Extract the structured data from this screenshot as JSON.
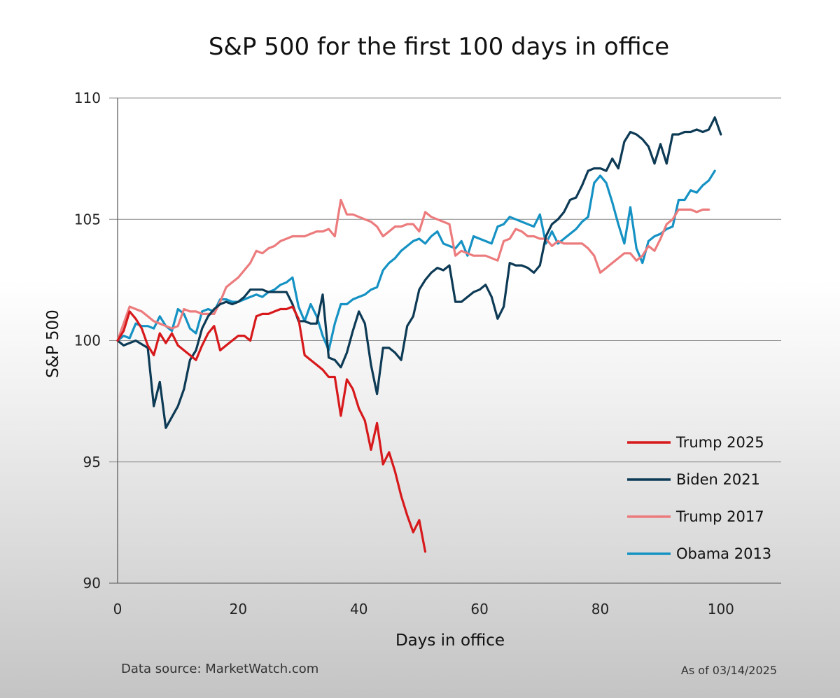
{
  "chart_data": {
    "type": "line",
    "title": "S&P 500 for the first 100 days in office",
    "xlabel": "Days in office",
    "ylabel": "S&P 500",
    "xlim": [
      0,
      110
    ],
    "ylim": [
      90,
      110
    ],
    "xticks": [
      "0",
      "20",
      "40",
      "60",
      "80",
      "100"
    ],
    "yticks": [
      "90",
      "95",
      "100",
      "105",
      "110"
    ],
    "grid": "horizontal",
    "legend_position": "bottom-right",
    "source": "Data source: MarketWatch.com",
    "as_of": "As of 03/14/2025",
    "series": [
      {
        "name": "Trump 2025",
        "color": "#d7191c",
        "x": [
          0,
          1,
          2,
          3,
          4,
          5,
          6,
          7,
          8,
          9,
          10,
          11,
          12,
          13,
          14,
          15,
          16,
          17,
          18,
          19,
          20,
          21,
          22,
          23,
          24,
          25,
          26,
          27,
          28,
          29,
          30,
          31,
          32,
          33,
          34,
          35,
          36,
          37,
          38,
          39,
          40,
          41,
          42,
          43,
          44,
          45,
          46,
          47,
          48,
          49,
          50,
          51
        ],
        "y": [
          100.0,
          100.4,
          101.2,
          100.9,
          100.5,
          99.8,
          99.4,
          100.3,
          99.9,
          100.3,
          99.8,
          99.6,
          99.4,
          99.2,
          99.8,
          100.3,
          100.6,
          99.6,
          99.8,
          100.0,
          100.2,
          100.2,
          100.0,
          101.0,
          101.1,
          101.1,
          101.2,
          101.3,
          101.3,
          101.4,
          100.9,
          99.4,
          99.2,
          99.0,
          98.8,
          98.5,
          98.5,
          96.9,
          98.4,
          98.0,
          97.2,
          96.7,
          95.5,
          96.6,
          94.9,
          95.4,
          94.6,
          93.6,
          92.8,
          92.1,
          92.6,
          91.3
        ]
      },
      {
        "name": "Biden 2021",
        "color": "#0d3a55",
        "x": [
          0,
          1,
          3,
          5,
          6,
          7,
          8,
          10,
          11,
          12,
          13,
          14,
          15,
          16,
          17,
          18,
          19,
          20,
          21,
          22,
          23,
          24,
          25,
          26,
          27,
          28,
          29,
          30,
          31,
          32,
          33,
          34,
          35,
          36,
          37,
          38,
          39,
          40,
          41,
          42,
          43,
          44,
          45,
          46,
          47,
          48,
          49,
          50,
          51,
          52,
          53,
          54,
          55,
          56,
          57,
          58,
          59,
          60,
          61,
          62,
          63,
          64,
          65,
          66,
          67,
          68,
          69,
          70,
          71,
          72,
          73,
          74,
          75,
          76,
          77,
          78,
          79,
          80,
          81,
          82,
          83,
          84,
          85,
          86,
          87,
          88,
          89,
          90,
          91,
          92,
          93,
          94,
          95,
          96,
          97,
          98,
          99,
          100
        ],
        "y": [
          100.0,
          99.8,
          100.0,
          99.7,
          97.3,
          98.3,
          96.4,
          97.3,
          98.0,
          99.2,
          99.6,
          100.5,
          101.0,
          101.3,
          101.5,
          101.6,
          101.5,
          101.6,
          101.8,
          102.1,
          102.1,
          102.1,
          102.0,
          102.0,
          102.0,
          102.0,
          101.5,
          100.8,
          100.8,
          100.7,
          100.7,
          101.9,
          99.3,
          99.2,
          98.9,
          99.5,
          100.4,
          101.2,
          100.7,
          99.0,
          97.8,
          99.7,
          99.7,
          99.5,
          99.2,
          100.6,
          101.0,
          102.1,
          102.5,
          102.8,
          103.0,
          102.9,
          103.1,
          101.6,
          101.6,
          101.8,
          102.0,
          102.1,
          102.3,
          101.8,
          100.9,
          101.4,
          103.2,
          103.1,
          103.1,
          103.0,
          102.8,
          103.1,
          104.3,
          104.8,
          105.0,
          105.3,
          105.8,
          105.9,
          106.4,
          107.0,
          107.1,
          107.1,
          107.0,
          107.5,
          107.1,
          108.2,
          108.6,
          108.5,
          108.3,
          108.0,
          107.3,
          108.1,
          107.3,
          108.5,
          108.5,
          108.6,
          108.6,
          108.7,
          108.6,
          108.7,
          109.2,
          108.5
        ]
      },
      {
        "name": "Trump 2017",
        "color": "#ec7b7d",
        "x": [
          0,
          1,
          2,
          3,
          4,
          5,
          6,
          7,
          8,
          9,
          10,
          11,
          12,
          13,
          14,
          15,
          16,
          17,
          18,
          19,
          20,
          21,
          22,
          23,
          24,
          25,
          26,
          27,
          28,
          29,
          30,
          31,
          32,
          33,
          34,
          35,
          36,
          37,
          38,
          39,
          40,
          41,
          42,
          43,
          44,
          45,
          46,
          47,
          48,
          49,
          50,
          51,
          52,
          53,
          54,
          55,
          56,
          57,
          58,
          59,
          60,
          61,
          62,
          63,
          64,
          65,
          66,
          67,
          68,
          69,
          70,
          71,
          72,
          73,
          74,
          75,
          76,
          77,
          78,
          79,
          80,
          81,
          82,
          83,
          84,
          85,
          86,
          87,
          88,
          89,
          90,
          91,
          92,
          93,
          94,
          95,
          96,
          97,
          98
        ],
        "y": [
          100.0,
          100.7,
          101.4,
          101.3,
          101.2,
          101.0,
          100.8,
          100.7,
          100.6,
          100.5,
          100.6,
          101.3,
          101.2,
          101.2,
          101.1,
          101.1,
          101.1,
          101.6,
          102.2,
          102.4,
          102.6,
          102.9,
          103.2,
          103.7,
          103.6,
          103.8,
          103.9,
          104.1,
          104.2,
          104.3,
          104.3,
          104.3,
          104.4,
          104.5,
          104.5,
          104.6,
          104.3,
          105.8,
          105.2,
          105.2,
          105.1,
          105.0,
          104.9,
          104.7,
          104.3,
          104.5,
          104.7,
          104.7,
          104.8,
          104.8,
          104.5,
          105.3,
          105.1,
          105.0,
          104.9,
          104.8,
          103.5,
          103.7,
          103.6,
          103.5,
          103.5,
          103.5,
          103.4,
          103.3,
          104.1,
          104.2,
          104.6,
          104.5,
          104.3,
          104.3,
          104.2,
          104.2,
          103.9,
          104.1,
          104.0,
          104.0,
          104.0,
          104.0,
          103.8,
          103.5,
          102.8,
          103.0,
          103.2,
          103.4,
          103.6,
          103.6,
          103.3,
          103.5,
          103.9,
          103.7,
          104.2,
          104.8,
          105.0,
          105.4,
          105.4,
          105.4,
          105.3,
          105.4,
          105.4
        ]
      },
      {
        "name": "Obama 2013",
        "color": "#1592c3",
        "x": [
          0,
          1,
          2,
          3,
          4,
          5,
          6,
          7,
          8,
          9,
          10,
          11,
          12,
          13,
          14,
          15,
          16,
          17,
          18,
          19,
          20,
          21,
          22,
          23,
          24,
          25,
          26,
          27,
          28,
          29,
          30,
          31,
          32,
          33,
          34,
          35,
          36,
          37,
          38,
          39,
          40,
          41,
          42,
          43,
          44,
          45,
          46,
          47,
          48,
          49,
          50,
          51,
          52,
          53,
          54,
          55,
          56,
          57,
          58,
          59,
          60,
          61,
          62,
          63,
          64,
          65,
          66,
          67,
          68,
          69,
          70,
          71,
          72,
          73,
          74,
          75,
          76,
          77,
          78,
          79,
          80,
          81,
          82,
          83,
          84,
          85,
          86,
          87,
          88,
          89,
          90,
          91,
          92,
          93,
          94,
          95,
          96,
          97,
          98,
          99
        ],
        "y": [
          100.0,
          100.2,
          100.1,
          100.7,
          100.6,
          100.6,
          100.5,
          101.0,
          100.6,
          100.4,
          101.3,
          101.1,
          100.5,
          100.3,
          101.2,
          101.3,
          101.2,
          101.7,
          101.7,
          101.6,
          101.6,
          101.7,
          101.8,
          101.9,
          101.8,
          102.0,
          102.1,
          102.3,
          102.4,
          102.6,
          101.4,
          100.8,
          101.5,
          101.0,
          100.2,
          99.6,
          100.7,
          101.5,
          101.5,
          101.7,
          101.8,
          101.9,
          102.1,
          102.2,
          102.9,
          103.2,
          103.4,
          103.7,
          103.9,
          104.1,
          104.2,
          104.0,
          104.3,
          104.5,
          104.0,
          103.9,
          103.8,
          104.1,
          103.5,
          104.3,
          104.2,
          104.1,
          104.0,
          104.7,
          104.8,
          105.1,
          105.0,
          104.9,
          104.8,
          104.7,
          105.2,
          104.0,
          104.5,
          104.0,
          104.2,
          104.4,
          104.6,
          104.9,
          105.1,
          106.5,
          106.8,
          106.5,
          105.7,
          104.8,
          104.0,
          105.5,
          103.8,
          103.2,
          104.1,
          104.3,
          104.4,
          104.6,
          104.7,
          105.8,
          105.8,
          106.2,
          106.1,
          106.4,
          106.6,
          107.0
        ]
      }
    ]
  }
}
